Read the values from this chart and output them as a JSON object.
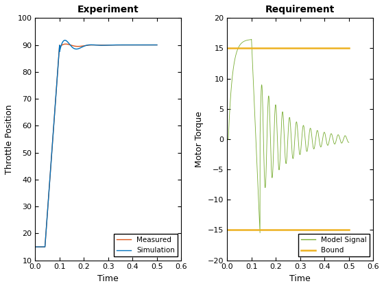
{
  "title1": "Experiment",
  "title2": "Requirement",
  "xlabel": "Time",
  "ylabel1": "Throttle Position",
  "ylabel2": "Motor Torque",
  "xlim": [
    0,
    0.6
  ],
  "ylim1": [
    10,
    100
  ],
  "ylim2": [
    -20,
    20
  ],
  "measured_color": "#0072BD",
  "simulation_color": "#D95319",
  "model_signal_color": "#77AC30",
  "bound_color": "#EDB120",
  "legend1": [
    "Measured",
    "Simulation"
  ],
  "legend2": [
    "Model Signal",
    "Bound"
  ],
  "bound_value_upper": 15,
  "bound_value_lower": -15,
  "background_color": "#ffffff",
  "fig_width": 5.6,
  "fig_height": 4.2,
  "dpi": 100
}
